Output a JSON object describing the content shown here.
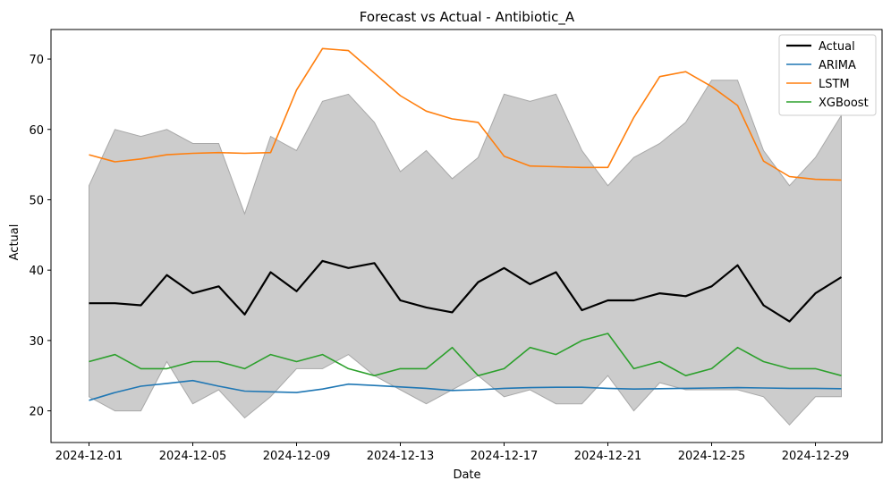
{
  "chart_data": {
    "type": "line",
    "title": "Forecast vs Actual - Antibiotic_A",
    "xlabel": "Date",
    "ylabel": "Actual",
    "x": [
      "2024-12-01",
      "2024-12-02",
      "2024-12-03",
      "2024-12-04",
      "2024-12-05",
      "2024-12-06",
      "2024-12-07",
      "2024-12-08",
      "2024-12-09",
      "2024-12-10",
      "2024-12-11",
      "2024-12-12",
      "2024-12-13",
      "2024-12-14",
      "2024-12-15",
      "2024-12-16",
      "2024-12-17",
      "2024-12-18",
      "2024-12-19",
      "2024-12-20",
      "2024-12-21",
      "2024-12-22",
      "2024-12-23",
      "2024-12-24",
      "2024-12-25",
      "2024-12-26",
      "2024-12-27",
      "2024-12-28",
      "2024-12-29",
      "2024-12-30"
    ],
    "x_ticks": [
      "2024-12-01",
      "2024-12-05",
      "2024-12-09",
      "2024-12-13",
      "2024-12-17",
      "2024-12-21",
      "2024-12-25",
      "2024-12-29"
    ],
    "y_ticks": [
      20,
      30,
      40,
      50,
      60,
      70
    ],
    "ylim": [
      15.5,
      74.2
    ],
    "grid": false,
    "legend_position": "top-right",
    "band": {
      "color": "#cccccc",
      "edge_color": "#a8a8a8",
      "upper": [
        52,
        60,
        59,
        60,
        58,
        58,
        48,
        59,
        57,
        64,
        65,
        61,
        54,
        57,
        53,
        56,
        65,
        64,
        65,
        57,
        52,
        56,
        58,
        61,
        67,
        67,
        57,
        52,
        56,
        62
      ],
      "lower": [
        22,
        20,
        20,
        27,
        21,
        23,
        19,
        22,
        26,
        26,
        28,
        25,
        23,
        21,
        23,
        25,
        22,
        23,
        21,
        21,
        25,
        20,
        24,
        23,
        23,
        23,
        22,
        18,
        22,
        22
      ]
    },
    "series": [
      {
        "name": "Actual",
        "color": "#000000",
        "width": 2.2,
        "values": [
          35.3,
          35.3,
          35.0,
          39.3,
          36.7,
          37.7,
          33.7,
          39.7,
          37.0,
          41.3,
          40.3,
          41.0,
          35.7,
          34.7,
          34.0,
          38.3,
          40.3,
          38.0,
          39.7,
          34.3,
          35.7,
          35.7,
          36.7,
          36.3,
          37.7,
          40.7,
          35.0,
          32.7,
          36.7,
          39.0
        ]
      },
      {
        "name": "ARIMA",
        "color": "#1f77b4",
        "width": 1.6,
        "values": [
          21.5,
          22.6,
          23.5,
          23.9,
          24.3,
          23.5,
          22.8,
          22.7,
          22.6,
          23.1,
          23.8,
          23.6,
          23.4,
          23.2,
          22.9,
          23.0,
          23.2,
          23.3,
          23.35,
          23.35,
          23.2,
          23.1,
          23.15,
          23.2,
          23.25,
          23.3,
          23.25,
          23.2,
          23.2,
          23.15
        ]
      },
      {
        "name": "LSTM",
        "color": "#ff7f0e",
        "width": 1.6,
        "values": [
          56.4,
          55.4,
          55.8,
          56.4,
          56.6,
          56.7,
          56.6,
          56.7,
          65.6,
          71.5,
          71.2,
          68.0,
          64.8,
          62.6,
          61.5,
          61.0,
          56.2,
          54.8,
          54.7,
          54.6,
          54.6,
          61.7,
          67.5,
          68.2,
          66.1,
          63.4,
          55.5,
          53.3,
          52.9,
          52.8
        ]
      },
      {
        "name": "XGBoost",
        "color": "#2ca02c",
        "width": 1.6,
        "values": [
          27,
          28,
          26,
          26,
          27,
          27,
          26,
          28,
          27,
          28,
          26,
          25,
          26,
          26,
          29,
          25,
          26,
          29,
          28,
          30,
          31,
          26,
          27,
          25,
          26,
          29,
          27,
          26,
          26,
          25
        ]
      }
    ]
  }
}
